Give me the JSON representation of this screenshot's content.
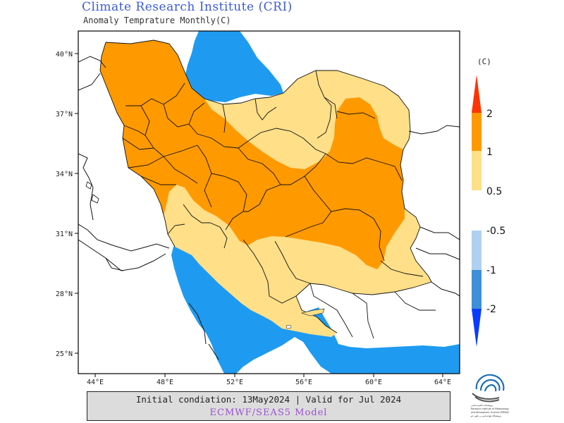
{
  "header": {
    "title": "Climate Research Institute (CRI)",
    "subtitle": "Anomaly Temprature Monthly(C)"
  },
  "legend": {
    "unit_label": "(C)",
    "warm_ticks": [
      "2",
      "1",
      "0.5"
    ],
    "cool_ticks": [
      "-0.5",
      "-1",
      "-2"
    ],
    "colors": {
      "above_2": "#ff3300",
      "c1_2": "#ff9900",
      "c05_1": "#ffdf88",
      "cm05_m1": "#afd0f2",
      "cm1_m2": "#3d8fd8",
      "below_m2": "#0a3cff"
    }
  },
  "map": {
    "lat_labels": [
      "40°N",
      "37°N",
      "34°N",
      "31°N",
      "28°N",
      "25°N"
    ],
    "lon_labels": [
      "44°E",
      "48°E",
      "52°E",
      "56°E",
      "60°E",
      "64°E"
    ],
    "water_color": "#1e9bf0"
  },
  "footer": {
    "line1": "Initial condiation: 13May2024 | Valid for Jul 2024",
    "line2": "ECMWF/SEAS5 Model"
  },
  "logo": {
    "text_lines": [
      "پژوهشکده اقلیم‌شناسی",
      "Research Institute of Meteorology",
      "and Atmospheric Science (RIMAS)",
      "پژوهشگاه هواشناسی و علوم جو"
    ]
  }
}
